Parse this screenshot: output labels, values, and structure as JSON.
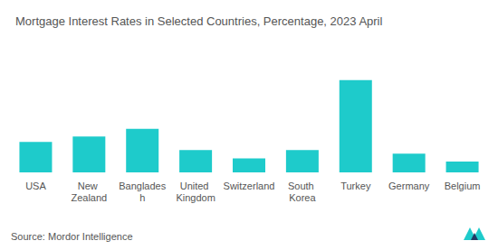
{
  "chart_data": {
    "type": "bar",
    "title": "Mortgage Interest Rates in Selected Countries, Percentage, 2023 April",
    "source": "Source: Mordor Intelligence",
    "categories": [
      "USA",
      "New Zealand",
      "Bangladesh",
      "United Kingdom",
      "Switzerland",
      "South Korea",
      "Turkey",
      "Germany",
      "Belgium"
    ],
    "values": [
      6.7,
      7.9,
      9.6,
      4.9,
      3.1,
      4.9,
      20.3,
      4.1,
      2.4
    ],
    "color": "#1ecbcb",
    "ylim": [
      0,
      28
    ],
    "grid": false,
    "tick_labels": "x"
  }
}
